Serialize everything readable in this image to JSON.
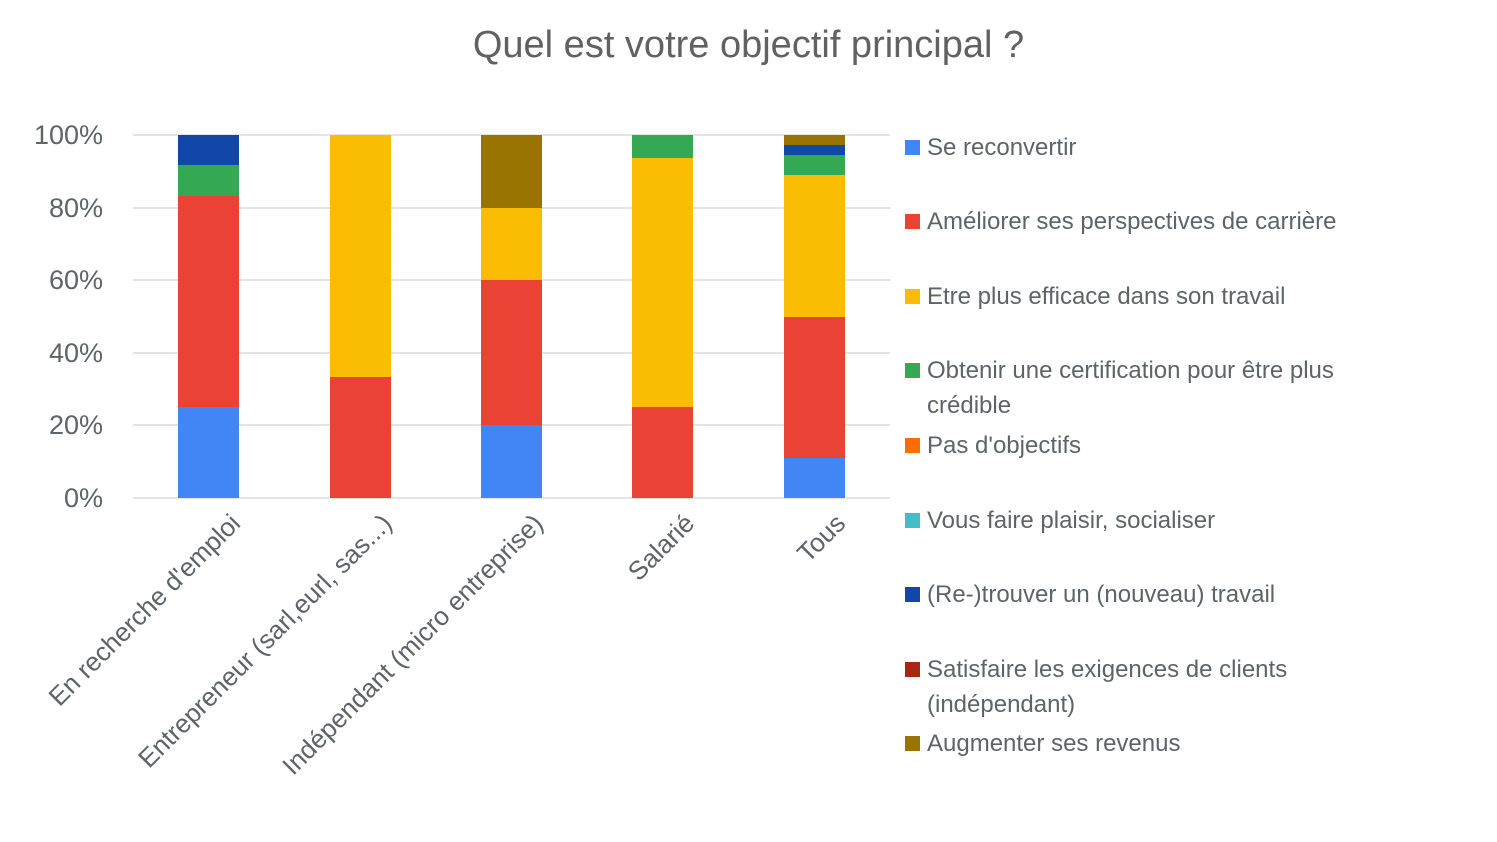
{
  "title": "Quel est votre objectif principal ?",
  "chart_data": {
    "type": "bar",
    "subtype": "stacked-100-percent-column",
    "title": "Quel est votre objectif principal ?",
    "xlabel": "",
    "ylabel": "",
    "grid": true,
    "legend_position": "right",
    "categories": [
      "En recherche d'emploi",
      "Entrepreneur (sarl,eurl, sas...)",
      "Indépendant (micro entreprise)",
      "Salarié",
      "Tous"
    ],
    "y_axis": {
      "range": [
        0,
        100
      ],
      "ticks": [
        {
          "label": "100%",
          "value": 100
        },
        {
          "label": "80%",
          "value": 80
        },
        {
          "label": "60%",
          "value": 60
        },
        {
          "label": "40%",
          "value": 40
        },
        {
          "label": "20%",
          "value": 20
        },
        {
          "label": "0%",
          "value": 0
        }
      ]
    },
    "series": [
      {
        "name": "Se reconvertir",
        "color": "#4285F4",
        "values": [
          25,
          0,
          20,
          0,
          11.11
        ]
      },
      {
        "name": "Améliorer ses perspectives de carrière",
        "color": "#EA4335",
        "values": [
          58.33,
          33.33,
          40,
          25,
          38.89
        ]
      },
      {
        "name": "Etre plus efficace dans son travail",
        "color": "#FBBC04",
        "values": [
          0,
          66.67,
          20,
          68.75,
          38.89
        ]
      },
      {
        "name": "Obtenir une certification pour être plus crédible",
        "color": "#34A853",
        "values": [
          8.33,
          0,
          0,
          6.25,
          5.56
        ]
      },
      {
        "name": "Pas d'objectifs",
        "color": "#FF6D01",
        "values": [
          0,
          0,
          0,
          0,
          0
        ]
      },
      {
        "name": "Vous faire plaisir, socialiser",
        "color": "#46BDC6",
        "values": [
          0,
          0,
          0,
          0,
          0
        ]
      },
      {
        "name": "(Re-)trouver un (nouveau) travail",
        "color": "#1147A8",
        "values": [
          8.34,
          0,
          0,
          0,
          2.78
        ]
      },
      {
        "name": "Satisfaire les exigences de clients (indépendant)",
        "color": "#A52714",
        "values": [
          0,
          0,
          0,
          0,
          0
        ]
      },
      {
        "name": "Augmenter ses revenus",
        "color": "#9A7400",
        "values": [
          0,
          0,
          20,
          0,
          2.77
        ]
      }
    ],
    "legend": [
      {
        "lines": [
          "Se reconvertir"
        ],
        "color": "#4285F4"
      },
      {
        "lines": [
          "Améliorer ses perspectives de carrière"
        ],
        "color": "#EA4335"
      },
      {
        "lines": [
          "Etre plus efficace dans son travail"
        ],
        "color": "#FBBC04"
      },
      {
        "lines": [
          "Obtenir une certification pour être plus",
          "crédible"
        ],
        "color": "#34A853"
      },
      {
        "lines": [
          "Pas d'objectifs"
        ],
        "color": "#FF6D01"
      },
      {
        "lines": [
          "Vous faire plaisir, socialiser"
        ],
        "color": "#46BDC6"
      },
      {
        "lines": [
          "(Re-)trouver un (nouveau) travail"
        ],
        "color": "#1147A8"
      },
      {
        "lines": [
          "Satisfaire les exigences de clients",
          "(indépendant)"
        ],
        "color": "#A52714"
      },
      {
        "lines": [
          "Augmenter ses revenus"
        ],
        "color": "#9A7400"
      }
    ]
  }
}
